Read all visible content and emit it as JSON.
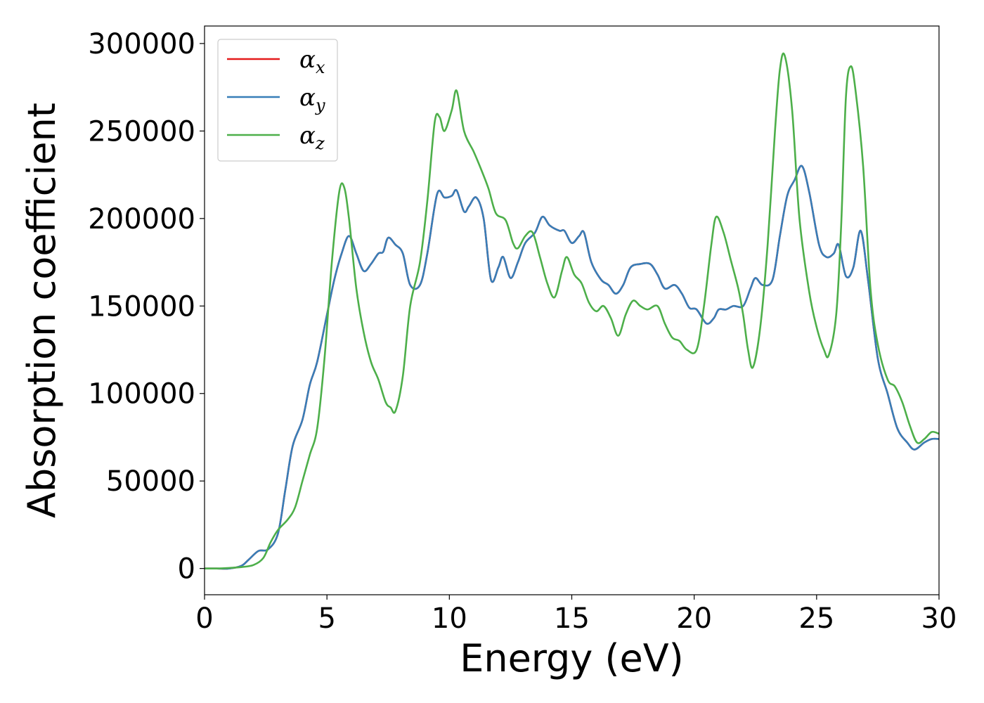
{
  "chart_data": {
    "type": "line",
    "title": "",
    "xlabel": "Energy (eV)",
    "ylabel": "Absorption coefficient",
    "xlim": [
      0,
      30
    ],
    "ylim": [
      -15000,
      310000
    ],
    "xticks": [
      0,
      5,
      10,
      15,
      20,
      25,
      30
    ],
    "yticks": [
      0,
      50000,
      100000,
      150000,
      200000,
      250000,
      300000
    ],
    "grid": false,
    "legend_position": "top-left",
    "series": [
      {
        "name": "α",
        "subscript": "x",
        "color": "#e41a1c",
        "points": [
          [
            0,
            0
          ],
          [
            0.5,
            0
          ],
          [
            1,
            0
          ],
          [
            1.5,
            1500
          ],
          [
            1.8,
            5000
          ],
          [
            2.2,
            10000
          ],
          [
            2.6,
            11000
          ],
          [
            3,
            20000
          ],
          [
            3.3,
            45000
          ],
          [
            3.6,
            70000
          ],
          [
            4,
            85000
          ],
          [
            4.3,
            105000
          ],
          [
            4.6,
            118000
          ],
          [
            5,
            145000
          ],
          [
            5.3,
            165000
          ],
          [
            5.6,
            180000
          ],
          [
            5.9,
            190000
          ],
          [
            6.2,
            180000
          ],
          [
            6.5,
            170000
          ],
          [
            6.8,
            174000
          ],
          [
            7.1,
            180000
          ],
          [
            7.3,
            181000
          ],
          [
            7.5,
            189000
          ],
          [
            7.8,
            185000
          ],
          [
            8.1,
            180000
          ],
          [
            8.4,
            162000
          ],
          [
            8.8,
            162000
          ],
          [
            9.1,
            180000
          ],
          [
            9.5,
            214000
          ],
          [
            9.8,
            212000
          ],
          [
            10.1,
            213000
          ],
          [
            10.3,
            216000
          ],
          [
            10.6,
            204000
          ],
          [
            10.8,
            207000
          ],
          [
            11.1,
            212000
          ],
          [
            11.4,
            200000
          ],
          [
            11.7,
            165000
          ],
          [
            12,
            172000
          ],
          [
            12.2,
            178000
          ],
          [
            12.5,
            166000
          ],
          [
            12.8,
            175000
          ],
          [
            13.1,
            186000
          ],
          [
            13.5,
            192000
          ],
          [
            13.8,
            201000
          ],
          [
            14.1,
            196000
          ],
          [
            14.5,
            193000
          ],
          [
            14.7,
            193000
          ],
          [
            15,
            186000
          ],
          [
            15.3,
            190000
          ],
          [
            15.5,
            192000
          ],
          [
            15.8,
            175000
          ],
          [
            16.2,
            165000
          ],
          [
            16.5,
            162000
          ],
          [
            16.8,
            157000
          ],
          [
            17.1,
            162000
          ],
          [
            17.4,
            172000
          ],
          [
            17.8,
            174000
          ],
          [
            18.2,
            174000
          ],
          [
            18.5,
            168000
          ],
          [
            18.8,
            160000
          ],
          [
            19.2,
            162000
          ],
          [
            19.5,
            157000
          ],
          [
            19.8,
            149000
          ],
          [
            20.1,
            148000
          ],
          [
            20.5,
            140000
          ],
          [
            20.8,
            143000
          ],
          [
            21,
            148000
          ],
          [
            21.3,
            148000
          ],
          [
            21.6,
            150000
          ],
          [
            22,
            150000
          ],
          [
            22.3,
            160000
          ],
          [
            22.5,
            166000
          ],
          [
            22.8,
            162000
          ],
          [
            23.2,
            165000
          ],
          [
            23.5,
            190000
          ],
          [
            23.8,
            213000
          ],
          [
            24.1,
            222000
          ],
          [
            24.4,
            230000
          ],
          [
            24.7,
            215000
          ],
          [
            25.1,
            185000
          ],
          [
            25.4,
            178000
          ],
          [
            25.7,
            180000
          ],
          [
            25.9,
            185000
          ],
          [
            26.2,
            167000
          ],
          [
            26.5,
            172000
          ],
          [
            26.8,
            193000
          ],
          [
            27.1,
            165000
          ],
          [
            27.5,
            120000
          ],
          [
            27.9,
            100000
          ],
          [
            28.3,
            80000
          ],
          [
            28.7,
            72000
          ],
          [
            29,
            68000
          ],
          [
            29.4,
            72000
          ],
          [
            29.7,
            74000
          ],
          [
            30,
            74000
          ]
        ]
      },
      {
        "name": "α",
        "subscript": "y",
        "color": "#377eb8",
        "points": [
          [
            0,
            0
          ],
          [
            0.5,
            0
          ],
          [
            1,
            0
          ],
          [
            1.5,
            1500
          ],
          [
            1.8,
            5000
          ],
          [
            2.2,
            10000
          ],
          [
            2.6,
            11000
          ],
          [
            3,
            20000
          ],
          [
            3.3,
            45000
          ],
          [
            3.6,
            70000
          ],
          [
            4,
            85000
          ],
          [
            4.3,
            105000
          ],
          [
            4.6,
            118000
          ],
          [
            5,
            145000
          ],
          [
            5.3,
            165000
          ],
          [
            5.6,
            180000
          ],
          [
            5.9,
            190000
          ],
          [
            6.2,
            180000
          ],
          [
            6.5,
            170000
          ],
          [
            6.8,
            174000
          ],
          [
            7.1,
            180000
          ],
          [
            7.3,
            181000
          ],
          [
            7.5,
            189000
          ],
          [
            7.8,
            185000
          ],
          [
            8.1,
            180000
          ],
          [
            8.4,
            162000
          ],
          [
            8.8,
            162000
          ],
          [
            9.1,
            180000
          ],
          [
            9.5,
            214000
          ],
          [
            9.8,
            212000
          ],
          [
            10.1,
            213000
          ],
          [
            10.3,
            216000
          ],
          [
            10.6,
            204000
          ],
          [
            10.8,
            207000
          ],
          [
            11.1,
            212000
          ],
          [
            11.4,
            200000
          ],
          [
            11.7,
            165000
          ],
          [
            12,
            172000
          ],
          [
            12.2,
            178000
          ],
          [
            12.5,
            166000
          ],
          [
            12.8,
            175000
          ],
          [
            13.1,
            186000
          ],
          [
            13.5,
            192000
          ],
          [
            13.8,
            201000
          ],
          [
            14.1,
            196000
          ],
          [
            14.5,
            193000
          ],
          [
            14.7,
            193000
          ],
          [
            15,
            186000
          ],
          [
            15.3,
            190000
          ],
          [
            15.5,
            192000
          ],
          [
            15.8,
            175000
          ],
          [
            16.2,
            165000
          ],
          [
            16.5,
            162000
          ],
          [
            16.8,
            157000
          ],
          [
            17.1,
            162000
          ],
          [
            17.4,
            172000
          ],
          [
            17.8,
            174000
          ],
          [
            18.2,
            174000
          ],
          [
            18.5,
            168000
          ],
          [
            18.8,
            160000
          ],
          [
            19.2,
            162000
          ],
          [
            19.5,
            157000
          ],
          [
            19.8,
            149000
          ],
          [
            20.1,
            148000
          ],
          [
            20.5,
            140000
          ],
          [
            20.8,
            143000
          ],
          [
            21,
            148000
          ],
          [
            21.3,
            148000
          ],
          [
            21.6,
            150000
          ],
          [
            22,
            150000
          ],
          [
            22.3,
            160000
          ],
          [
            22.5,
            166000
          ],
          [
            22.8,
            162000
          ],
          [
            23.2,
            165000
          ],
          [
            23.5,
            190000
          ],
          [
            23.8,
            213000
          ],
          [
            24.1,
            222000
          ],
          [
            24.4,
            230000
          ],
          [
            24.7,
            215000
          ],
          [
            25.1,
            185000
          ],
          [
            25.4,
            178000
          ],
          [
            25.7,
            180000
          ],
          [
            25.9,
            185000
          ],
          [
            26.2,
            167000
          ],
          [
            26.5,
            172000
          ],
          [
            26.8,
            193000
          ],
          [
            27.1,
            165000
          ],
          [
            27.5,
            120000
          ],
          [
            27.9,
            100000
          ],
          [
            28.3,
            80000
          ],
          [
            28.7,
            72000
          ],
          [
            29,
            68000
          ],
          [
            29.4,
            72000
          ],
          [
            29.7,
            74000
          ],
          [
            30,
            74000
          ]
        ]
      },
      {
        "name": "α",
        "subscript": "z",
        "color": "#4daf4a",
        "points": [
          [
            0,
            0
          ],
          [
            0.5,
            0
          ],
          [
            1,
            300
          ],
          [
            1.5,
            800
          ],
          [
            2,
            2000
          ],
          [
            2.4,
            6000
          ],
          [
            2.7,
            15000
          ],
          [
            3,
            22000
          ],
          [
            3.4,
            28000
          ],
          [
            3.7,
            35000
          ],
          [
            4,
            50000
          ],
          [
            4.3,
            65000
          ],
          [
            4.6,
            80000
          ],
          [
            4.9,
            120000
          ],
          [
            5.2,
            175000
          ],
          [
            5.5,
            215000
          ],
          [
            5.7,
            218000
          ],
          [
            5.9,
            200000
          ],
          [
            6.2,
            160000
          ],
          [
            6.5,
            135000
          ],
          [
            6.8,
            118000
          ],
          [
            7.1,
            108000
          ],
          [
            7.4,
            95000
          ],
          [
            7.6,
            92000
          ],
          [
            7.8,
            90000
          ],
          [
            8.1,
            110000
          ],
          [
            8.4,
            150000
          ],
          [
            8.8,
            175000
          ],
          [
            9.1,
            210000
          ],
          [
            9.4,
            255000
          ],
          [
            9.6,
            258000
          ],
          [
            9.8,
            250000
          ],
          [
            10.1,
            262000
          ],
          [
            10.3,
            273000
          ],
          [
            10.6,
            250000
          ],
          [
            11,
            238000
          ],
          [
            11.3,
            228000
          ],
          [
            11.6,
            217000
          ],
          [
            11.9,
            203000
          ],
          [
            12.3,
            199000
          ],
          [
            12.6,
            186000
          ],
          [
            12.8,
            183000
          ],
          [
            13.1,
            190000
          ],
          [
            13.4,
            192000
          ],
          [
            13.7,
            178000
          ],
          [
            14,
            163000
          ],
          [
            14.3,
            155000
          ],
          [
            14.6,
            170000
          ],
          [
            14.8,
            178000
          ],
          [
            15.1,
            168000
          ],
          [
            15.4,
            163000
          ],
          [
            15.7,
            152000
          ],
          [
            16,
            147000
          ],
          [
            16.3,
            150000
          ],
          [
            16.6,
            143000
          ],
          [
            16.9,
            133000
          ],
          [
            17.2,
            145000
          ],
          [
            17.5,
            153000
          ],
          [
            17.8,
            150000
          ],
          [
            18.1,
            148000
          ],
          [
            18.5,
            150000
          ],
          [
            18.8,
            140000
          ],
          [
            19.1,
            132000
          ],
          [
            19.4,
            130000
          ],
          [
            19.7,
            125000
          ],
          [
            20.1,
            125000
          ],
          [
            20.4,
            150000
          ],
          [
            20.7,
            185000
          ],
          [
            20.9,
            201000
          ],
          [
            21.2,
            192000
          ],
          [
            21.5,
            176000
          ],
          [
            21.8,
            160000
          ],
          [
            22,
            145000
          ],
          [
            22.2,
            125000
          ],
          [
            22.4,
            115000
          ],
          [
            22.7,
            138000
          ],
          [
            23,
            185000
          ],
          [
            23.3,
            250000
          ],
          [
            23.5,
            285000
          ],
          [
            23.7,
            293000
          ],
          [
            24,
            262000
          ],
          [
            24.3,
            200000
          ],
          [
            24.7,
            158000
          ],
          [
            25,
            138000
          ],
          [
            25.3,
            125000
          ],
          [
            25.5,
            122000
          ],
          [
            25.8,
            145000
          ],
          [
            26,
            195000
          ],
          [
            26.2,
            270000
          ],
          [
            26.4,
            287000
          ],
          [
            26.6,
            272000
          ],
          [
            26.9,
            230000
          ],
          [
            27.2,
            160000
          ],
          [
            27.5,
            128000
          ],
          [
            27.9,
            108000
          ],
          [
            28.2,
            104000
          ],
          [
            28.5,
            95000
          ],
          [
            28.8,
            82000
          ],
          [
            29.1,
            72000
          ],
          [
            29.4,
            74000
          ],
          [
            29.7,
            78000
          ],
          [
            30,
            77000
          ]
        ]
      }
    ]
  }
}
